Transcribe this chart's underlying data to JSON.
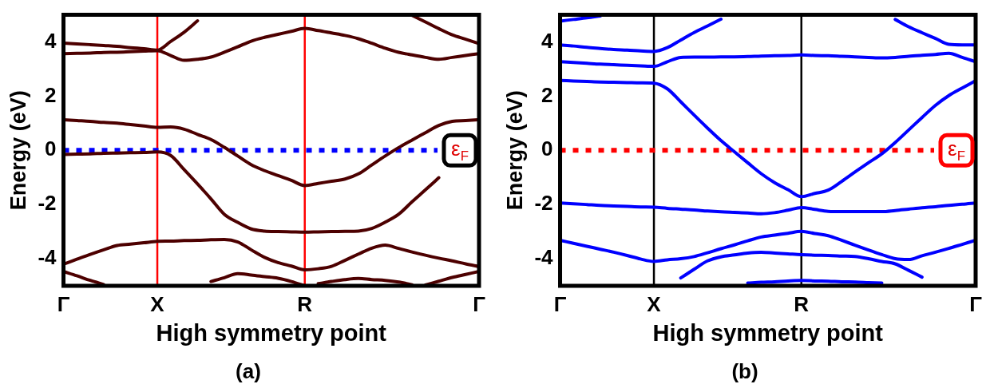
{
  "chart_data": [
    {
      "type": "line",
      "title": "(a)",
      "xlabel": "High symmetry point",
      "ylabel": "Energy (eV)",
      "categories": [
        "Γ",
        null,
        null,
        null,
        null,
        null,
        null,
        "X",
        null,
        null,
        null,
        null,
        null,
        null,
        null,
        null,
        null,
        null,
        "R",
        null,
        null,
        null,
        null,
        null,
        null,
        null,
        null,
        null,
        null,
        null,
        null,
        "Γ"
      ],
      "ylim": [
        -5,
        5
      ],
      "yticks": [
        -4,
        -2,
        0,
        2,
        4
      ],
      "grid": false,
      "legend": false,
      "marker": "none",
      "line_style": "solid",
      "ref_lines": [
        {
          "axis": "x",
          "value": "X",
          "color": "#ff0000",
          "line_style": "solid"
        },
        {
          "axis": "x",
          "value": "R",
          "color": "#ff0000",
          "line_style": "solid"
        },
        {
          "axis": "y",
          "value": 0,
          "label": "ε$_{F}$",
          "color": "#0000ff",
          "line_style": "dotted"
        }
      ],
      "series": [
        {
          "color": "#4d0000",
          "values": [
            3.96,
            3.93,
            3.9,
            3.87,
            3.84,
            3.79,
            3.75,
            3.7,
            4.02,
            4.36,
            4.78,
            null,
            null,
            null,
            null,
            null,
            null,
            null,
            null,
            null,
            null,
            null,
            null,
            null,
            null,
            null,
            null,
            null,
            null,
            null,
            null,
            null
          ]
        },
        {
          "color": "#4d0000",
          "values": [
            3.57,
            3.58,
            3.59,
            3.61,
            3.62,
            3.64,
            3.66,
            3.68,
            3.5,
            3.32,
            3.36,
            3.44,
            3.62,
            3.82,
            4.03,
            4.17,
            4.28,
            4.39,
            4.5,
            4.42,
            4.33,
            4.24,
            4.12,
            3.95,
            3.77,
            3.62,
            3.52,
            3.43,
            3.36,
            3.43,
            3.5,
            3.57
          ]
        },
        {
          "color": "#4d0000",
          "values": [
            null,
            null,
            null,
            null,
            null,
            null,
            null,
            null,
            null,
            null,
            null,
            null,
            null,
            null,
            null,
            null,
            null,
            null,
            null,
            null,
            null,
            null,
            null,
            null,
            null,
            null,
            4.98,
            4.74,
            4.49,
            4.26,
            4.1,
            3.94
          ]
        },
        {
          "color": "#4d0000",
          "values": [
            1.13,
            1.1,
            1.07,
            1.03,
            1.0,
            0.95,
            0.9,
            0.85,
            0.86,
            0.78,
            0.59,
            0.4,
            0.11,
            -0.21,
            -0.53,
            -0.75,
            -0.93,
            -1.11,
            -1.3,
            -1.22,
            -1.14,
            -1.06,
            -0.87,
            -0.54,
            -0.21,
            0.1,
            0.38,
            0.65,
            0.92,
            1.07,
            1.1,
            1.13
          ]
        },
        {
          "color": "#4d0000",
          "values": [
            -0.15,
            -0.14,
            -0.13,
            -0.11,
            -0.1,
            -0.09,
            -0.08,
            -0.06,
            -0.19,
            -0.71,
            -1.24,
            -1.79,
            -2.36,
            -2.66,
            -2.9,
            -2.98,
            -3.0,
            -3.01,
            -3.02,
            -3.01,
            -3.0,
            -2.99,
            -2.98,
            -2.88,
            -2.65,
            -2.36,
            -1.9,
            -1.46,
            -1.01,
            null,
            null,
            null
          ]
        },
        {
          "color": "#4d0000",
          "values": [
            -4.2,
            -4.02,
            -3.84,
            -3.67,
            -3.51,
            -3.46,
            -3.41,
            -3.36,
            -3.35,
            -3.33,
            -3.32,
            -3.3,
            -3.29,
            -3.38,
            -3.67,
            -3.95,
            -4.14,
            -4.27,
            -4.41,
            -4.37,
            -4.28,
            -4.06,
            -3.83,
            -3.61,
            -3.5,
            -3.62,
            -3.75,
            -3.87,
            -3.98,
            -4.08,
            -4.19,
            -4.29
          ]
        },
        {
          "color": "#4d0000",
          "values": [
            -4.47,
            -4.63,
            -4.8,
            -4.95,
            null,
            null,
            null,
            null,
            null,
            null,
            null,
            null,
            null,
            null,
            null,
            null,
            null,
            null,
            null,
            null,
            null,
            null,
            null,
            null,
            null,
            null,
            null,
            null,
            null,
            null,
            null,
            null
          ]
        },
        {
          "color": "#4d0000",
          "values": [
            null,
            null,
            null,
            null,
            null,
            null,
            null,
            null,
            null,
            null,
            null,
            -4.84,
            -4.7,
            -4.55,
            -4.6,
            -4.66,
            -4.72,
            -4.84,
            -5.0,
            null,
            null,
            null,
            null,
            null,
            null,
            null,
            null,
            null,
            null,
            null,
            null,
            null
          ]
        },
        {
          "color": "#4d0000",
          "values": [
            null,
            null,
            null,
            null,
            null,
            null,
            null,
            null,
            null,
            null,
            null,
            null,
            null,
            null,
            null,
            null,
            null,
            null,
            null,
            -4.92,
            -4.84,
            -4.77,
            -4.73,
            -4.77,
            -4.8,
            -4.86,
            -4.96,
            null,
            null,
            null,
            null,
            null
          ]
        },
        {
          "color": "#4d0000",
          "values": [
            null,
            null,
            null,
            null,
            null,
            null,
            null,
            null,
            null,
            null,
            null,
            null,
            null,
            null,
            null,
            null,
            null,
            null,
            null,
            null,
            null,
            null,
            null,
            null,
            null,
            null,
            null,
            -4.97,
            -4.83,
            -4.69,
            -4.58,
            -4.47
          ]
        }
      ]
    },
    {
      "type": "line",
      "title": "(b)",
      "xlabel": "High symmetry point",
      "ylabel": "Energy (eV)",
      "categories": [
        "Γ",
        null,
        null,
        null,
        null,
        null,
        null,
        "X",
        null,
        null,
        null,
        null,
        null,
        null,
        null,
        null,
        null,
        null,
        "R",
        null,
        null,
        null,
        null,
        null,
        null,
        null,
        null,
        null,
        null,
        null,
        null,
        "Γ"
      ],
      "ylim": [
        -5,
        5
      ],
      "yticks": [
        -4,
        -2,
        0,
        2,
        4
      ],
      "grid": false,
      "legend": false,
      "marker": "none",
      "line_style": "solid",
      "ref_lines": [
        {
          "axis": "x",
          "value": "X",
          "color": "#000000",
          "line_style": "solid"
        },
        {
          "axis": "x",
          "value": "R",
          "color": "#000000",
          "line_style": "solid"
        },
        {
          "axis": "y",
          "value": 0,
          "label": "ε$_{F}$",
          "color": "#ff0000",
          "line_style": "dotted"
        }
      ],
      "series": [
        {
          "color": "#0000ff",
          "values": [
            4.77,
            4.83,
            4.89,
            4.96,
            null,
            null,
            null,
            null,
            null,
            null,
            null,
            null,
            null,
            null,
            null,
            null,
            null,
            null,
            null,
            null,
            null,
            null,
            null,
            null,
            null,
            null,
            null,
            null,
            null,
            null,
            null,
            null
          ]
        },
        {
          "color": "#0000ff",
          "values": [
            3.89,
            3.85,
            3.8,
            3.76,
            3.72,
            3.7,
            3.67,
            3.65,
            3.79,
            4.07,
            4.35,
            4.59,
            4.84,
            null,
            null,
            null,
            null,
            null,
            null,
            null,
            null,
            null,
            null,
            null,
            null,
            null,
            null,
            null,
            null,
            null,
            null,
            null
          ]
        },
        {
          "color": "#0000ff",
          "values": [
            null,
            null,
            null,
            null,
            null,
            null,
            null,
            null,
            null,
            null,
            null,
            null,
            null,
            null,
            null,
            null,
            null,
            null,
            null,
            null,
            null,
            null,
            null,
            null,
            null,
            4.83,
            4.56,
            4.34,
            4.13,
            3.91,
            3.89,
            3.89
          ]
        },
        {
          "color": "#0000ff",
          "values": [
            3.27,
            3.24,
            3.21,
            3.18,
            3.16,
            3.14,
            3.12,
            3.1,
            3.27,
            3.43,
            3.44,
            3.44,
            3.45,
            3.45,
            3.46,
            3.48,
            3.49,
            3.5,
            3.52,
            3.5,
            3.49,
            3.47,
            3.45,
            3.43,
            3.41,
            3.43,
            3.47,
            3.51,
            3.54,
            3.58,
            3.43,
            3.27
          ]
        },
        {
          "color": "#0000ff",
          "values": [
            2.58,
            2.56,
            2.54,
            2.52,
            2.51,
            2.5,
            2.49,
            2.48,
            2.27,
            1.79,
            1.3,
            0.82,
            0.36,
            -0.05,
            -0.46,
            -0.86,
            -1.19,
            -1.45,
            -1.71,
            -1.59,
            -1.47,
            -1.15,
            -0.8,
            -0.46,
            -0.13,
            0.29,
            0.75,
            1.21,
            1.66,
            2.02,
            2.3,
            2.57
          ]
        },
        {
          "color": "#0000ff",
          "values": [
            -1.94,
            -1.97,
            -2.0,
            -2.03,
            -2.05,
            -2.07,
            -2.09,
            -2.1,
            -2.14,
            -2.17,
            -2.2,
            -2.24,
            -2.27,
            -2.29,
            -2.31,
            -2.34,
            -2.3,
            -2.21,
            -2.11,
            -2.18,
            -2.25,
            -2.26,
            -2.26,
            -2.26,
            -2.26,
            -2.22,
            -2.17,
            -2.12,
            -2.08,
            -2.03,
            -1.99,
            -1.94
          ]
        },
        {
          "color": "#0000ff",
          "values": [
            -3.32,
            -3.43,
            -3.54,
            -3.65,
            -3.76,
            -3.88,
            -4.01,
            -4.1,
            -4.04,
            -4.0,
            -3.92,
            -3.78,
            -3.63,
            -3.49,
            -3.34,
            -3.2,
            -3.13,
            -3.06,
            -2.99,
            -3.07,
            -3.15,
            -3.32,
            -3.5,
            -3.68,
            -3.85,
            -4.0,
            -4.03,
            -3.89,
            -3.76,
            -3.62,
            -3.47,
            -3.32
          ]
        },
        {
          "color": "#0000ff",
          "values": [
            null,
            null,
            null,
            null,
            null,
            null,
            null,
            null,
            null,
            -4.71,
            -4.39,
            -4.08,
            -3.93,
            -3.86,
            -3.79,
            -3.76,
            -3.79,
            -3.82,
            -3.85,
            -3.87,
            -3.88,
            -3.9,
            -3.92,
            -4.0,
            -4.1,
            -4.19,
            -4.43,
            -4.68,
            null,
            null,
            null,
            null
          ]
        },
        {
          "color": "#0000ff",
          "values": [
            null,
            null,
            null,
            null,
            null,
            null,
            null,
            null,
            null,
            null,
            null,
            null,
            null,
            null,
            -4.9,
            -4.87,
            -4.85,
            -4.82,
            -4.8,
            -4.82,
            -4.83,
            -4.85,
            -4.86,
            -4.88,
            -4.9,
            null,
            null,
            null,
            null,
            null,
            null,
            null
          ]
        }
      ]
    }
  ]
}
